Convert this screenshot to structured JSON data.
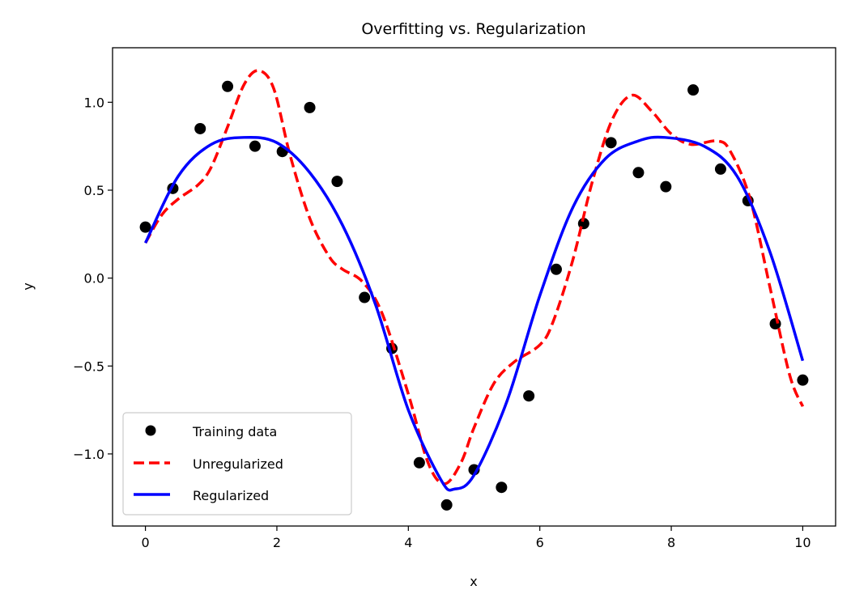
{
  "chart_data": {
    "type": "line",
    "title": "Overfitting vs. Regularization",
    "xlabel": "x",
    "ylabel": "y",
    "xlim": [
      -0.5,
      10.5
    ],
    "ylim": [
      -1.41,
      1.31
    ],
    "xticks": [
      0,
      2,
      4,
      6,
      8,
      10
    ],
    "xtick_labels": [
      "0",
      "2",
      "4",
      "6",
      "8",
      "10"
    ],
    "yticks": [
      -1.0,
      -0.5,
      0.0,
      0.5,
      1.0
    ],
    "ytick_labels": [
      "−1.0",
      "−0.5",
      "0.0",
      "0.5",
      "1.0"
    ],
    "grid": false,
    "legend_placement": "lower-left",
    "series": [
      {
        "name": "Training data",
        "kind": "scatter",
        "color": "#000000",
        "x": [
          0,
          0.417,
          0.833,
          1.25,
          1.667,
          2.083,
          2.5,
          2.917,
          3.333,
          3.75,
          4.167,
          4.583,
          5.0,
          5.417,
          5.833,
          6.25,
          6.667,
          7.083,
          7.5,
          7.917,
          8.333,
          8.75,
          9.167,
          9.583,
          10.0
        ],
        "y": [
          0.29,
          0.51,
          0.85,
          1.09,
          0.75,
          0.72,
          0.97,
          0.55,
          -0.11,
          -0.4,
          -1.05,
          -1.29,
          -1.09,
          -1.19,
          -0.67,
          0.05,
          0.31,
          0.77,
          0.6,
          0.52,
          1.07,
          0.62,
          0.44,
          -0.26,
          -0.58
        ]
      },
      {
        "name": "Unregularized",
        "kind": "line",
        "style": "dashed",
        "color": "#ff0000",
        "x": [
          0,
          0.25,
          0.5,
          0.8,
          1.0,
          1.25,
          1.5,
          1.72,
          1.95,
          2.2,
          2.5,
          2.8,
          3.0,
          3.3,
          3.6,
          4.0,
          4.3,
          4.55,
          4.8,
          5.0,
          5.3,
          5.6,
          6.0,
          6.2,
          6.5,
          6.8,
          7.1,
          7.4,
          7.7,
          8.0,
          8.3,
          8.7,
          8.9,
          9.2,
          9.5,
          9.8,
          10.0
        ],
        "y": [
          0.2,
          0.36,
          0.45,
          0.53,
          0.63,
          0.86,
          1.1,
          1.18,
          1.08,
          0.7,
          0.34,
          0.12,
          0.05,
          -0.02,
          -0.2,
          -0.66,
          -1.05,
          -1.17,
          -1.05,
          -0.85,
          -0.6,
          -0.48,
          -0.38,
          -0.25,
          0.1,
          0.55,
          0.9,
          1.04,
          0.95,
          0.82,
          0.76,
          0.78,
          0.72,
          0.45,
          -0.05,
          -0.55,
          -0.73
        ]
      },
      {
        "name": "Regularized",
        "kind": "line",
        "style": "solid",
        "color": "#0000ff",
        "x": [
          0,
          0.5,
          1.0,
          1.5,
          2.0,
          2.5,
          3.0,
          3.5,
          4.0,
          4.5,
          4.7,
          5.0,
          5.5,
          6.0,
          6.5,
          7.0,
          7.5,
          7.9,
          8.5,
          9.0,
          9.5,
          10.0
        ],
        "y": [
          0.2,
          0.58,
          0.76,
          0.8,
          0.77,
          0.6,
          0.3,
          -0.15,
          -0.75,
          -1.15,
          -1.2,
          -1.12,
          -0.7,
          -0.1,
          0.4,
          0.68,
          0.78,
          0.8,
          0.75,
          0.58,
          0.15,
          -0.47
        ]
      }
    ]
  }
}
